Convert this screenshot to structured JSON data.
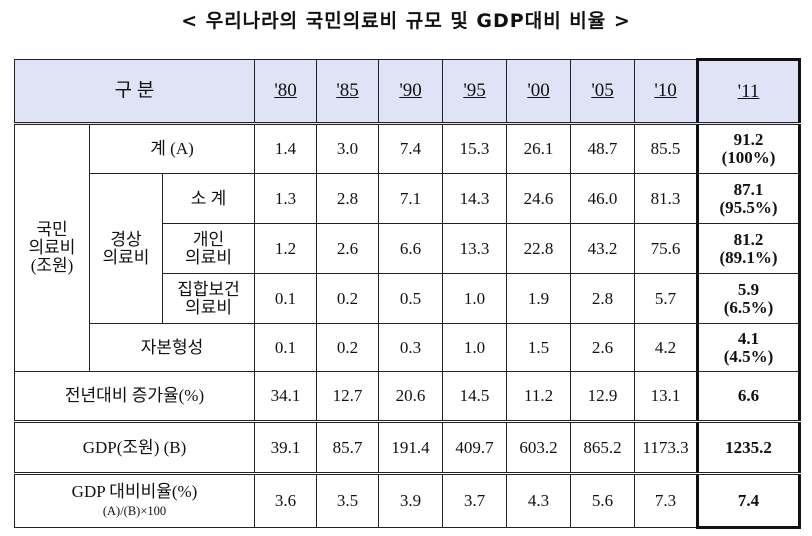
{
  "title": "< 우리나라의 국민의료비 규모 및 GDP대비 비율 >",
  "header": {
    "label": "구 분",
    "years": [
      "'80",
      "'85",
      "'90",
      "'95",
      "'00",
      "'05",
      "'10",
      "'11"
    ]
  },
  "labels": {
    "national": "국민\n의료비\n(조원)",
    "current": "경상\n의료비",
    "total": "계 (A)",
    "subtotal": "소 계",
    "personal": "개인\n의료비",
    "collective": "집합보건\n의료비",
    "capital": "자본형성",
    "growth": "전년대비 증가율(%)",
    "gdp": "GDP(조원) (B)",
    "ratio": "GDP 대비비율(%)",
    "ratio_sub": "(A)/(B)×100"
  },
  "rows": {
    "total": [
      "1.4",
      "3.0",
      "7.4",
      "15.3",
      "26.1",
      "48.7",
      "85.5",
      "91.2\n(100%)"
    ],
    "subtotal": [
      "1.3",
      "2.8",
      "7.1",
      "14.3",
      "24.6",
      "46.0",
      "81.3",
      "87.1\n(95.5%)"
    ],
    "personal": [
      "1.2",
      "2.6",
      "6.6",
      "13.3",
      "22.8",
      "43.2",
      "75.6",
      "81.2\n(89.1%)"
    ],
    "collective": [
      "0.1",
      "0.2",
      "0.5",
      "1.0",
      "1.9",
      "2.8",
      "5.7",
      "5.9\n(6.5%)"
    ],
    "capital": [
      "0.1",
      "0.2",
      "0.3",
      "1.0",
      "1.5",
      "2.6",
      "4.2",
      "4.1\n(4.5%)"
    ],
    "growth": [
      "34.1",
      "12.7",
      "20.6",
      "14.5",
      "11.2",
      "12.9",
      "13.1",
      "6.6"
    ],
    "gdp": [
      "39.1",
      "85.7",
      "191.4",
      "409.7",
      "603.2",
      "865.2",
      "1173.3",
      "1235.2"
    ],
    "ratio": [
      "3.6",
      "3.5",
      "3.9",
      "3.7",
      "4.3",
      "5.6",
      "7.3",
      "7.4"
    ]
  }
}
